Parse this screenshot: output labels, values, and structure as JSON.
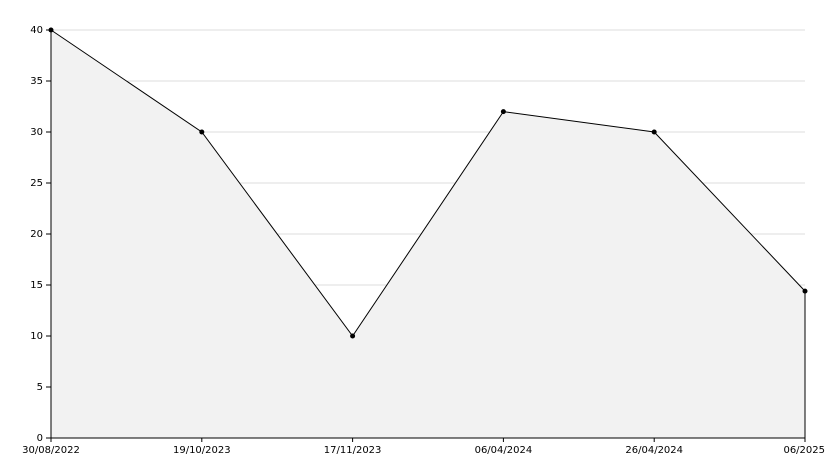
{
  "chart_data": {
    "type": "area",
    "categories": [
      "30/08/2022",
      "19/10/2023",
      "17/11/2023",
      "06/04/2024",
      "26/04/2024",
      "06/2025"
    ],
    "values": [
      40,
      30,
      10,
      32,
      30,
      14.4
    ],
    "color": "#000000",
    "fill": "#f2f2f2",
    "ylim": [
      0,
      40
    ],
    "yticks": [
      0,
      5,
      10,
      15,
      20,
      25,
      30,
      35,
      40
    ],
    "grid": true
  }
}
